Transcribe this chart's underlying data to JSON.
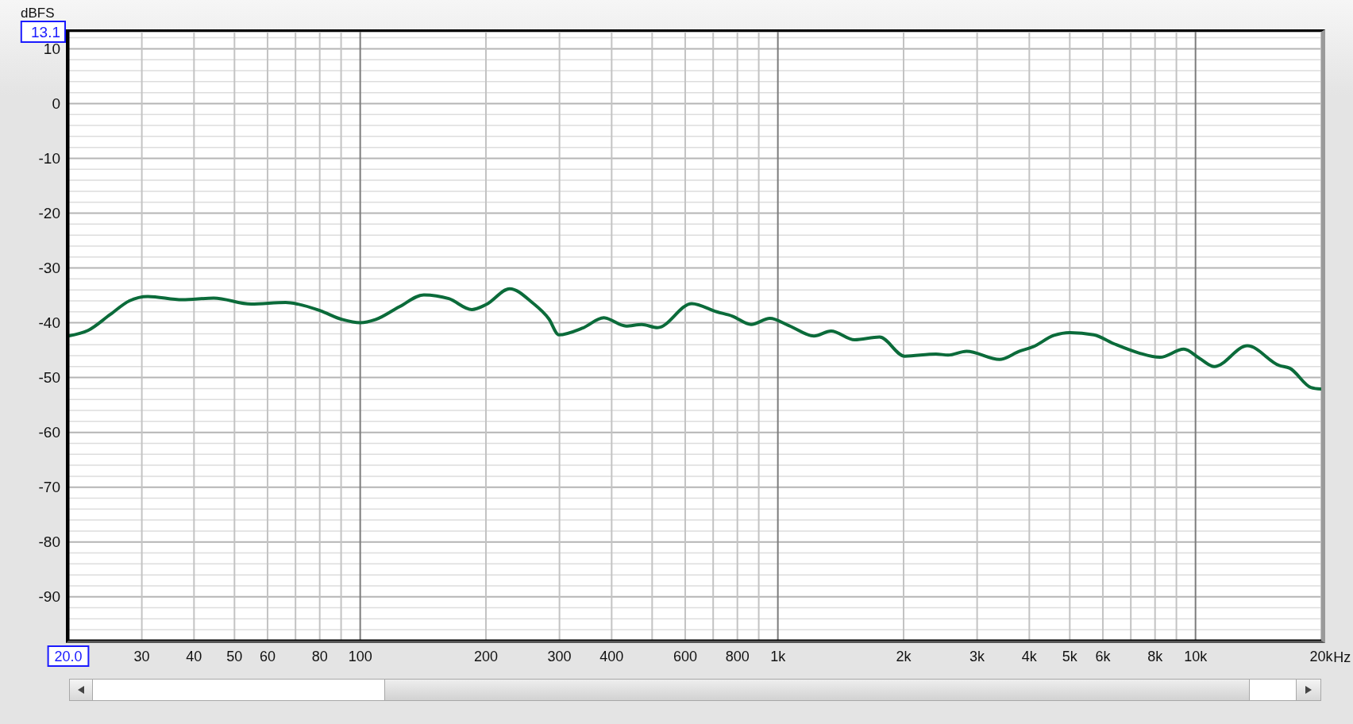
{
  "chart_data": {
    "type": "line",
    "xlabel": "Hz",
    "ylabel": "dBFS",
    "log": "x",
    "grid": true,
    "marker": "none",
    "color": "#0b6b3a",
    "xlim": [
      20,
      20000
    ],
    "ylim": [
      -98,
      13.1
    ],
    "xticks": [
      {
        "value": 20,
        "label": "20.0"
      },
      30,
      40,
      50,
      60,
      {
        "value": 70,
        "label": null
      },
      80,
      {
        "value": 90,
        "label": null
      },
      100,
      200,
      300,
      400,
      {
        "value": 500,
        "label": null
      },
      600,
      {
        "value": 700,
        "label": null
      },
      800,
      {
        "value": 900,
        "label": null
      },
      {
        "value": 1000,
        "label": "1k"
      },
      {
        "value": 2000,
        "label": "2k"
      },
      {
        "value": 3000,
        "label": "3k"
      },
      {
        "value": 4000,
        "label": "4k"
      },
      {
        "value": 5000,
        "label": "5k"
      },
      {
        "value": 6000,
        "label": "6k"
      },
      {
        "value": 7000,
        "label": null
      },
      {
        "value": 8000,
        "label": "8k"
      },
      {
        "value": 9000,
        "label": null
      },
      {
        "value": 10000,
        "label": "10k"
      },
      {
        "value": 20000,
        "label": "20k"
      }
    ],
    "yticks": [
      13.1,
      {
        "value": 12,
        "label": null
      },
      10,
      {
        "value": 8,
        "label": null
      },
      {
        "value": 6,
        "label": null
      },
      {
        "value": 4,
        "label": null
      },
      {
        "value": 2,
        "label": null
      },
      0,
      {
        "value": -2,
        "label": null
      },
      {
        "value": -4,
        "label": null
      },
      {
        "value": -6,
        "label": null
      },
      {
        "value": -8,
        "label": null
      },
      -10,
      {
        "value": -12,
        "label": null
      },
      {
        "value": -14,
        "label": null
      },
      {
        "value": -16,
        "label": null
      },
      {
        "value": -18,
        "label": null
      },
      -20,
      {
        "value": -22,
        "label": null
      },
      {
        "value": -24,
        "label": null
      },
      {
        "value": -26,
        "label": null
      },
      {
        "value": -28,
        "label": null
      },
      -30,
      {
        "value": -32,
        "label": null
      },
      {
        "value": -34,
        "label": null
      },
      {
        "value": -36,
        "label": null
      },
      {
        "value": -38,
        "label": null
      },
      -40,
      {
        "value": -42,
        "label": null
      },
      {
        "value": -44,
        "label": null
      },
      {
        "value": -46,
        "label": null
      },
      {
        "value": -48,
        "label": null
      },
      -50,
      {
        "value": -52,
        "label": null
      },
      {
        "value": -54,
        "label": null
      },
      {
        "value": -56,
        "label": null
      },
      {
        "value": -58,
        "label": null
      },
      -60,
      {
        "value": -62,
        "label": null
      },
      {
        "value": -64,
        "label": null
      },
      {
        "value": -66,
        "label": null
      },
      {
        "value": -68,
        "label": null
      },
      -70,
      {
        "value": -72,
        "label": null
      },
      {
        "value": -74,
        "label": null
      },
      {
        "value": -76,
        "label": null
      },
      {
        "value": -78,
        "label": null
      },
      -80,
      {
        "value": -82,
        "label": null
      },
      {
        "value": -84,
        "label": null
      },
      {
        "value": -86,
        "label": null
      },
      {
        "value": -88,
        "label": null
      },
      -90,
      {
        "value": -92,
        "label": null
      },
      {
        "value": -94,
        "label": null
      },
      {
        "value": -96,
        "label": null
      }
    ],
    "x": [
      20,
      22.3,
      25.2,
      28,
      31,
      37.5,
      44.6,
      54.8,
      66.3,
      71,
      80.2,
      90.5,
      100,
      109,
      124,
      142,
      163,
      185,
      200,
      228,
      258,
      283,
      299,
      340,
      383,
      433,
      472,
      515,
      622,
      714,
      779,
      863,
      957,
      1062,
      1220,
      1341,
      1526,
      1752,
      2012,
      2392,
      2556,
      2830,
      3396,
      3790,
      4078,
      4584,
      5004,
      5706,
      6412,
      7314,
      8222,
      9376,
      10230,
      11086,
      13310,
      15866,
      16820,
      18894,
      20000
    ],
    "values": [
      -42.4,
      -41.4,
      -38.5,
      -36.0,
      -35.2,
      -35.8,
      -35.5,
      -36.6,
      -36.3,
      -36.6,
      -37.8,
      -39.4,
      -40.0,
      -39.4,
      -37.1,
      -34.9,
      -35.6,
      -37.6,
      -36.7,
      -33.8,
      -36.3,
      -39.3,
      -42.2,
      -41.0,
      -39.1,
      -40.6,
      -40.3,
      -40.9,
      -36.5,
      -38.0,
      -38.8,
      -40.3,
      -39.2,
      -40.5,
      -42.4,
      -41.5,
      -43.1,
      -42.6,
      -46.1,
      -45.7,
      -45.9,
      -45.2,
      -46.7,
      -45.2,
      -44.4,
      -42.3,
      -41.8,
      -42.2,
      -43.9,
      -45.5,
      -46.3,
      -44.8,
      -46.5,
      -48.0,
      -44.2,
      -47.8,
      -48.3,
      -51.8,
      -52.1
    ]
  }
}
